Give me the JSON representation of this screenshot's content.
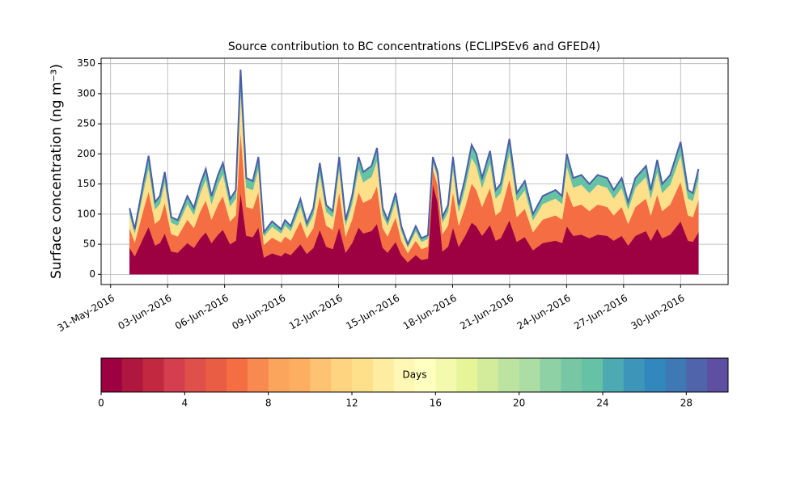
{
  "chart_data": {
    "type": "stacked_area",
    "title": "Source contribution to BC concentrations (ECLIPSEv6 and GFED4)",
    "y_label": "Surface concentration (ng m⁻³)",
    "x": [
      1.0,
      1.27,
      1.74,
      2.0,
      2.34,
      2.59,
      2.85,
      3.19,
      3.53,
      4.04,
      4.38,
      4.72,
      5.01,
      5.31,
      5.65,
      5.91,
      6.29,
      6.59,
      6.84,
      7.14,
      7.48,
      7.78,
      8.07,
      8.5,
      8.97,
      9.18,
      9.48,
      9.99,
      10.33,
      10.67,
      11.01,
      11.35,
      11.69,
      12.03,
      12.37,
      12.71,
      13.05,
      13.3,
      13.73,
      14.02,
      14.32,
      14.58,
      15.0,
      15.3,
      15.64,
      16.06,
      16.36,
      16.7,
      16.96,
      17.21,
      17.47,
      17.76,
      18.02,
      18.32,
      18.66,
      19.0,
      19.25,
      19.55,
      19.97,
      20.27,
      20.53,
      20.99,
      21.38,
      21.8,
      22.23,
      22.74,
      23.42,
      23.76,
      24.01,
      24.35,
      24.78,
      25.2,
      25.63,
      26.14,
      26.48,
      26.9,
      27.24,
      27.62,
      28.18,
      28.43,
      28.77,
      29.03,
      29.45,
      30.0,
      30.39,
      30.64,
      30.94
    ],
    "series": [
      {
        "color": "#9e0142",
        "values": [
          44,
          30,
          62,
          79,
          48,
          52,
          68,
          38,
          36,
          52,
          44,
          60,
          70,
          52,
          66,
          74,
          50,
          56,
          136,
          64,
          62,
          78,
          28,
          35,
          30,
          36,
          32,
          50,
          34,
          44,
          74,
          46,
          42,
          78,
          36,
          52,
          78,
          68,
          72,
          84,
          44,
          36,
          54,
          32,
          20,
          32,
          24,
          26,
          150,
          120,
          38,
          46,
          78,
          46,
          64,
          86,
          80,
          64,
          82,
          56,
          60,
          90,
          54,
          62,
          40,
          52,
          56,
          52,
          80,
          64,
          66,
          60,
          66,
          64,
          56,
          64,
          48,
          64,
          72,
          56,
          76,
          60,
          66,
          88,
          56,
          54,
          70
        ]
      },
      {
        "color": "#f46d43",
        "values": [
          33,
          23,
          47,
          59,
          36,
          39,
          51,
          29,
          27,
          39,
          33,
          45,
          53,
          39,
          50,
          56,
          38,
          42,
          102,
          48,
          47,
          59,
          21,
          26,
          23,
          27,
          24,
          38,
          26,
          33,
          56,
          35,
          32,
          59,
          27,
          39,
          59,
          51,
          54,
          63,
          33,
          27,
          41,
          24,
          15,
          24,
          18,
          20,
          25,
          28,
          29,
          35,
          59,
          35,
          48,
          65,
          60,
          48,
          62,
          42,
          45,
          68,
          41,
          47,
          30,
          39,
          42,
          39,
          60,
          48,
          50,
          45,
          50,
          48,
          42,
          48,
          36,
          48,
          54,
          42,
          57,
          45,
          50,
          66,
          42,
          41,
          53
        ]
      },
      {
        "color": "#fee08b",
        "values": [
          22,
          15,
          31,
          39,
          24,
          26,
          34,
          19,
          18,
          26,
          22,
          30,
          35,
          26,
          33,
          37,
          25,
          28,
          68,
          32,
          31,
          39,
          14,
          18,
          15,
          18,
          16,
          25,
          17,
          22,
          37,
          23,
          21,
          39,
          18,
          26,
          39,
          34,
          36,
          42,
          22,
          18,
          27,
          16,
          10,
          16,
          12,
          13,
          12,
          14,
          19,
          23,
          39,
          23,
          32,
          43,
          40,
          32,
          41,
          28,
          30,
          45,
          27,
          31,
          20,
          26,
          28,
          26,
          40,
          32,
          33,
          30,
          33,
          32,
          28,
          32,
          24,
          32,
          36,
          28,
          38,
          30,
          33,
          44,
          28,
          27,
          35
        ]
      },
      {
        "color": "#66c2a5",
        "values": [
          11,
          7,
          15,
          20,
          12,
          13,
          17,
          9,
          9,
          13,
          11,
          15,
          17,
          13,
          16,
          18,
          12,
          14,
          34,
          16,
          15,
          19,
          7,
          9,
          7,
          9,
          8,
          12,
          8,
          11,
          18,
          11,
          10,
          19,
          9,
          13,
          19,
          17,
          18,
          21,
          11,
          9,
          13,
          8,
          5,
          8,
          6,
          6,
          8,
          8,
          9,
          11,
          19,
          11,
          16,
          21,
          20,
          16,
          20,
          14,
          15,
          22,
          13,
          15,
          10,
          13,
          14,
          13,
          20,
          16,
          16,
          15,
          16,
          16,
          14,
          16,
          12,
          16,
          18,
          14,
          19,
          15,
          16,
          22,
          14,
          13,
          17
        ]
      }
    ],
    "line_color": "#4a5fa8",
    "xlim": [
      -0.5,
      32.5
    ],
    "xticks": [
      {
        "value": 0,
        "label": "31-May-2016"
      },
      {
        "value": 3,
        "label": "03-Jun-2016"
      },
      {
        "value": 6,
        "label": "06-Jun-2016"
      },
      {
        "value": 9,
        "label": "09-Jun-2016"
      },
      {
        "value": 12,
        "label": "12-Jun-2016"
      },
      {
        "value": 15,
        "label": "15-Jun-2016"
      },
      {
        "value": 18,
        "label": "18-Jun-2016"
      },
      {
        "value": 21,
        "label": "21-Jun-2016"
      },
      {
        "value": 24,
        "label": "24-Jun-2016"
      },
      {
        "value": 27,
        "label": "27-Jun-2016"
      },
      {
        "value": 30,
        "label": "30-Jun-2016"
      }
    ],
    "ylim": [
      -17,
      359
    ],
    "yticks": [
      0,
      50,
      100,
      150,
      200,
      250,
      300,
      350
    ],
    "grid": true,
    "colorbar": {
      "label": "Days",
      "lim": [
        0,
        30
      ],
      "ticks": [
        0,
        4,
        8,
        12,
        16,
        20,
        24,
        28
      ],
      "colors": [
        "#9e0142",
        "#b0173f",
        "#c2283f",
        "#d53e4f",
        "#e0504a",
        "#ea5d45",
        "#f46d43",
        "#f88950",
        "#fba55c",
        "#fdae61",
        "#fdc372",
        "#fed480",
        "#fee08b",
        "#feeda1",
        "#fff7b3",
        "#ffffbf",
        "#f4faad",
        "#e6f598",
        "#d2ec9b",
        "#bce4a0",
        "#abdda4",
        "#8ed1a4",
        "#77c7a5",
        "#66c2a5",
        "#4eaab2",
        "#3d96b9",
        "#3288bd",
        "#3f79b5",
        "#4f64ab",
        "#5e4fa2"
      ]
    }
  }
}
